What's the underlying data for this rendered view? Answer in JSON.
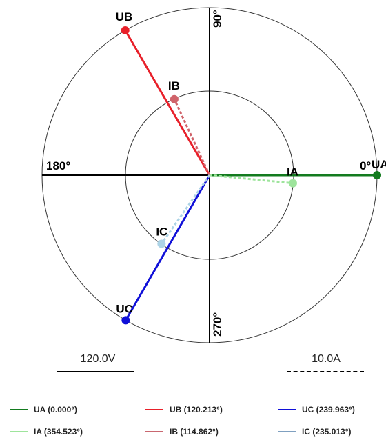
{
  "axes": {
    "right": "0°",
    "top": "90°",
    "left": "180°",
    "bottom": "270°"
  },
  "vectors": [
    {
      "name": "UA",
      "angle": 0.0,
      "magnitude": 1.0,
      "color": "#137b1f",
      "style": "solid"
    },
    {
      "name": "UB",
      "angle": 120.213,
      "magnitude": 1.0,
      "color": "#e8202a",
      "style": "solid"
    },
    {
      "name": "UC",
      "angle": 239.963,
      "magnitude": 1.0,
      "color": "#1010d8",
      "style": "solid"
    },
    {
      "name": "IA",
      "angle": 354.523,
      "magnitude": 0.5,
      "color": "#9ee49c",
      "style": "dashed"
    },
    {
      "name": "IB",
      "angle": 114.862,
      "magnitude": 0.5,
      "color": "#d0636a",
      "style": "dashed"
    },
    {
      "name": "IC",
      "angle": 235.013,
      "magnitude": 0.5,
      "color": "#acd3e6",
      "style": "dashed"
    }
  ],
  "scale": {
    "voltage": "120.0V",
    "current": "10.0A"
  },
  "legend": [
    {
      "label": "UA (0.000°)",
      "color": "#137b1f"
    },
    {
      "label": "UB (120.213°)",
      "color": "#e8202a"
    },
    {
      "label": "UC (239.963°)",
      "color": "#1010d8"
    },
    {
      "label": "IA (354.523°)",
      "color": "#9ee49c"
    },
    {
      "label": "IB (114.862°)",
      "color": "#c96770"
    },
    {
      "label": "IC (235.013°)",
      "color": "#7fa0c0"
    }
  ]
}
